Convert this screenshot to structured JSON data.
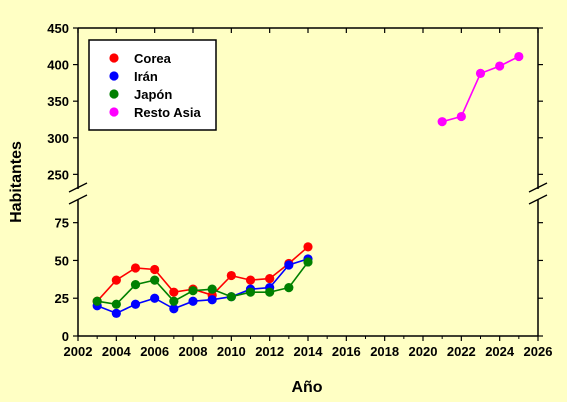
{
  "chart_data": {
    "type": "line",
    "xlabel": "Año",
    "ylabel": "Habitantes",
    "xlim": [
      2002,
      2026
    ],
    "x_ticks": [
      2002,
      2004,
      2006,
      2008,
      2010,
      2012,
      2014,
      2016,
      2018,
      2020,
      2022,
      2024,
      2026
    ],
    "y_axis_break": true,
    "ylim_lower": [
      0,
      90
    ],
    "ylim_upper": [
      230,
      450
    ],
    "y_ticks_lower": [
      0,
      25,
      50,
      75
    ],
    "y_ticks_upper": [
      250,
      300,
      350,
      400,
      450
    ],
    "grid": false,
    "legend_position": "top-left",
    "series": [
      {
        "name": "Corea",
        "color": "#ff0000",
        "x": [
          2003,
          2004,
          2005,
          2006,
          2007,
          2008,
          2009,
          2010,
          2011,
          2012,
          2013,
          2014
        ],
        "values": [
          23,
          37,
          45,
          44,
          29,
          31,
          27,
          40,
          37,
          38,
          48,
          59
        ]
      },
      {
        "name": "Irán",
        "color": "#0000ff",
        "x": [
          2003,
          2004,
          2005,
          2006,
          2007,
          2008,
          2009,
          2010,
          2011,
          2012,
          2013,
          2014
        ],
        "values": [
          20,
          15,
          21,
          25,
          18,
          23,
          24,
          26,
          31,
          32,
          47,
          51
        ]
      },
      {
        "name": "Japón",
        "color": "#008000",
        "x": [
          2003,
          2004,
          2005,
          2006,
          2007,
          2008,
          2009,
          2010,
          2011,
          2012,
          2013,
          2014
        ],
        "values": [
          23,
          21,
          34,
          37,
          23,
          30,
          31,
          26,
          29,
          29,
          32,
          49
        ]
      },
      {
        "name": "Resto Asia",
        "color": "#ff00ff",
        "x": [
          2021,
          2022,
          2023,
          2024,
          2025
        ],
        "values": [
          322,
          329,
          388,
          398,
          411
        ]
      }
    ]
  }
}
